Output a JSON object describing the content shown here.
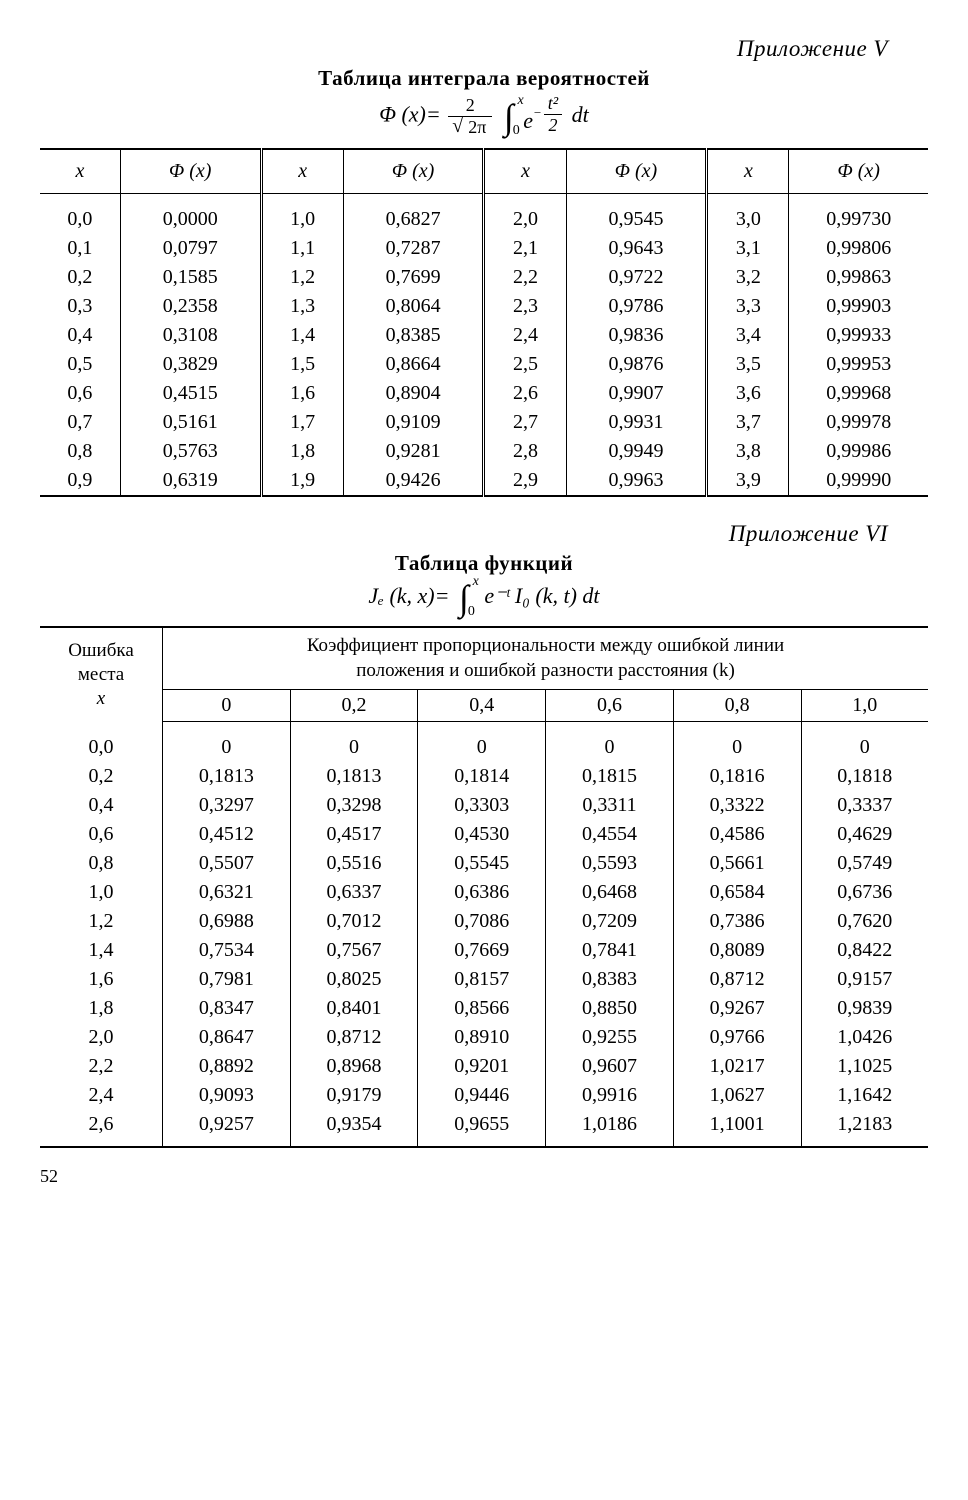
{
  "appendix1": {
    "title": "Приложение V"
  },
  "table1": {
    "title": "Таблица интеграла вероятностей",
    "formula_label": "Φ (x)=",
    "formula_frac_num": "2",
    "formula_frac_den": "2π",
    "formula_upper": "x",
    "formula_lower": "0",
    "formula_exp_top": "t²",
    "formula_exp_bot": "2",
    "formula_dt": "dt",
    "header_x": "x",
    "header_phi": "Φ (x)",
    "columns": [
      {
        "x": [
          "0,0",
          "0,1",
          "0,2",
          "0,3",
          "0,4",
          "0,5",
          "0,6",
          "0,7",
          "0,8",
          "0,9"
        ],
        "phi": [
          "0,0000",
          "0,0797",
          "0,1585",
          "0,2358",
          "0,3108",
          "0,3829",
          "0,4515",
          "0,5161",
          "0,5763",
          "0,6319"
        ]
      },
      {
        "x": [
          "1,0",
          "1,1",
          "1,2",
          "1,3",
          "1,4",
          "1,5",
          "1,6",
          "1,7",
          "1,8",
          "1,9"
        ],
        "phi": [
          "0,6827",
          "0,7287",
          "0,7699",
          "0,8064",
          "0,8385",
          "0,8664",
          "0,8904",
          "0,9109",
          "0,9281",
          "0,9426"
        ]
      },
      {
        "x": [
          "2,0",
          "2,1",
          "2,2",
          "2,3",
          "2,4",
          "2,5",
          "2,6",
          "2,7",
          "2,8",
          "2,9"
        ],
        "phi": [
          "0,9545",
          "0,9643",
          "0,9722",
          "0,9786",
          "0,9836",
          "0,9876",
          "0,9907",
          "0,9931",
          "0,9949",
          "0,9963"
        ]
      },
      {
        "x": [
          "3,0",
          "3,1",
          "3,2",
          "3,3",
          "3,4",
          "3,5",
          "3,6",
          "3,7",
          "3,8",
          "3,9"
        ],
        "phi": [
          "0,99730",
          "0,99806",
          "0,99863",
          "0,99903",
          "0,99933",
          "0,99953",
          "0,99968",
          "0,99978",
          "0,99986",
          "0,99990"
        ]
      }
    ]
  },
  "appendix2": {
    "title": "Приложение VI"
  },
  "table2": {
    "title": "Таблица функций",
    "formula_label": "Jₑ (k,  x)=",
    "formula_upper": "x",
    "formula_lower": "0",
    "formula_body": "e⁻ᵗ I₀ (k,  t) dt",
    "rowhead_l1": "Ошибка",
    "rowhead_l2": "места",
    "rowhead_l3": "x",
    "spanhead_l1": "Коэффициент пропорциональности между ошибкой линии",
    "spanhead_l2": "положения и ошибкой разности расстояния (k)",
    "k_headers": [
      "0",
      "0,2",
      "0,4",
      "0,6",
      "0,8",
      "1,0"
    ],
    "rows": [
      {
        "x": "0,0",
        "v": [
          "0",
          "0",
          "0",
          "0",
          "0",
          "0"
        ]
      },
      {
        "x": "0,2",
        "v": [
          "0,1813",
          "0,1813",
          "0,1814",
          "0,1815",
          "0,1816",
          "0,1818"
        ]
      },
      {
        "x": "0,4",
        "v": [
          "0,3297",
          "0,3298",
          "0,3303",
          "0,3311",
          "0,3322",
          "0,3337"
        ]
      },
      {
        "x": "0,6",
        "v": [
          "0,4512",
          "0,4517",
          "0,4530",
          "0,4554",
          "0,4586",
          "0,4629"
        ]
      },
      {
        "x": "0,8",
        "v": [
          "0,5507",
          "0,5516",
          "0,5545",
          "0,5593",
          "0,5661",
          "0,5749"
        ]
      },
      {
        "x": "1,0",
        "v": [
          "0,6321",
          "0,6337",
          "0,6386",
          "0,6468",
          "0,6584",
          "0,6736"
        ]
      },
      {
        "x": "1,2",
        "v": [
          "0,6988",
          "0,7012",
          "0,7086",
          "0,7209",
          "0,7386",
          "0,7620"
        ]
      },
      {
        "x": "1,4",
        "v": [
          "0,7534",
          "0,7567",
          "0,7669",
          "0,7841",
          "0,8089",
          "0,8422"
        ]
      },
      {
        "x": "1,6",
        "v": [
          "0,7981",
          "0,8025",
          "0,8157",
          "0,8383",
          "0,8712",
          "0,9157"
        ]
      },
      {
        "x": "1,8",
        "v": [
          "0,8347",
          "0,8401",
          "0,8566",
          "0,8850",
          "0,9267",
          "0,9839"
        ]
      },
      {
        "x": "2,0",
        "v": [
          "0,8647",
          "0,8712",
          "0,8910",
          "0,9255",
          "0,9766",
          "1,0426"
        ]
      },
      {
        "x": "2,2",
        "v": [
          "0,8892",
          "0,8968",
          "0,9201",
          "0,9607",
          "1,0217",
          "1,1025"
        ]
      },
      {
        "x": "2,4",
        "v": [
          "0,9093",
          "0,9179",
          "0,9446",
          "0,9916",
          "1,0627",
          "1,1642"
        ]
      },
      {
        "x": "2,6",
        "v": [
          "0,9257",
          "0,9354",
          "0,9655",
          "1,0186",
          "1,1001",
          "1,2183"
        ]
      }
    ]
  },
  "page_number": "52"
}
